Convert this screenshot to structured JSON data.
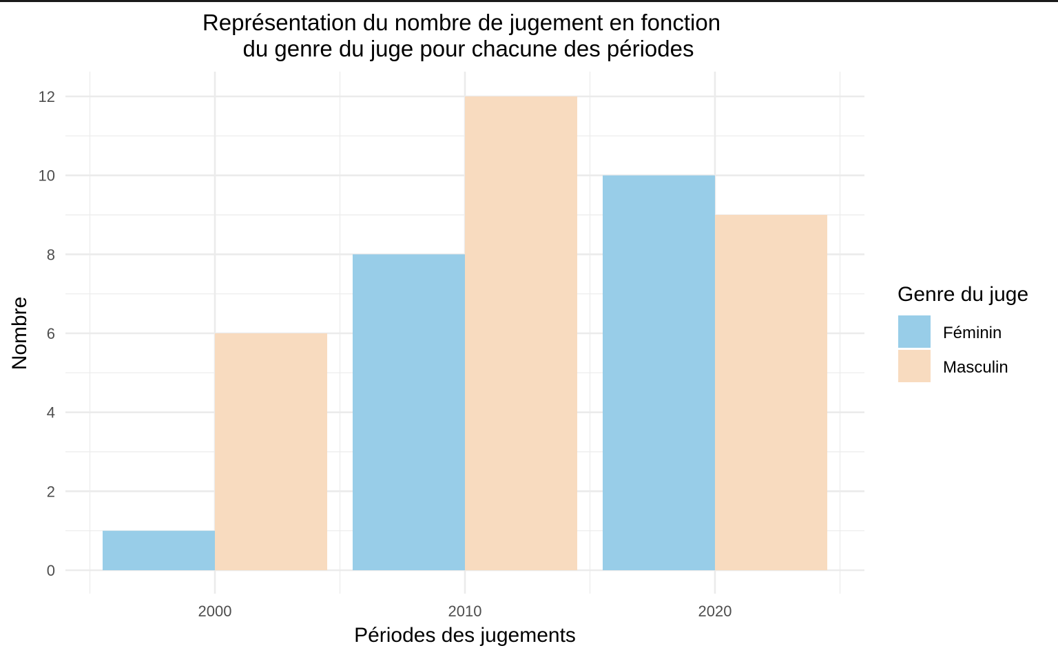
{
  "chart_data": {
    "type": "bar",
    "title_lines": [
      "Représentation du nombre de jugement en fonction",
      "du genre du juge pour chacune des périodes"
    ],
    "xlabel": "Périodes des jugements",
    "ylabel": "Nombre",
    "categories": [
      "2000",
      "2010",
      "2020"
    ],
    "series": [
      {
        "name": "Féminin",
        "values": [
          1,
          8,
          10
        ],
        "color": "#98CDE8"
      },
      {
        "name": "Masculin",
        "values": [
          6,
          12,
          9
        ],
        "color": "#F8DBBF"
      }
    ],
    "ylim": [
      0,
      12.6
    ],
    "yticks": [
      0,
      2,
      4,
      6,
      8,
      10,
      12
    ],
    "grid": true,
    "legend": {
      "title": "Genre du juge",
      "position": "right"
    },
    "grid_color": "#ebebeb"
  }
}
